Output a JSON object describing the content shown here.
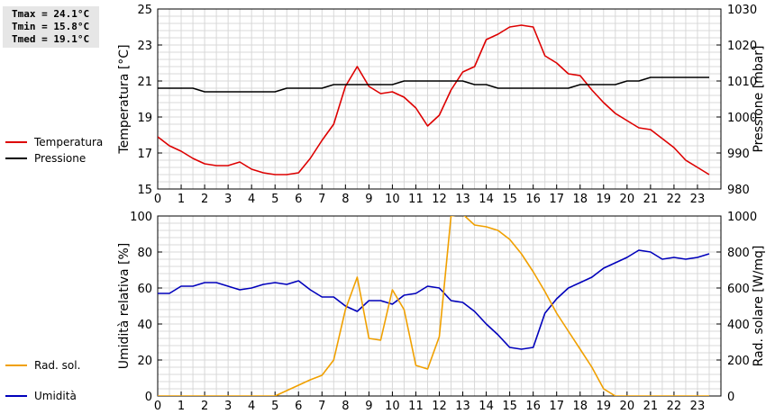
{
  "stats": {
    "tmax": "Tmax = 24.1°C",
    "tmin": "Tmin = 15.8°C",
    "tmed": "Tmed = 19.1°C"
  },
  "chart_data": [
    {
      "type": "line",
      "title": "",
      "xlabel": "",
      "ylabel": "Temperatura [°C]",
      "ylabel_right": "Pressione [mbar]",
      "xlim": [
        0,
        24
      ],
      "xticks": [
        0,
        1,
        2,
        3,
        4,
        5,
        6,
        7,
        8,
        9,
        10,
        11,
        12,
        13,
        14,
        15,
        16,
        17,
        18,
        19,
        20,
        21,
        22,
        23
      ],
      "ylim": [
        15,
        25
      ],
      "yticks": [
        15,
        17,
        19,
        21,
        23,
        25
      ],
      "ylim_right": [
        980,
        1030
      ],
      "yticks_right": [
        980,
        990,
        1000,
        1010,
        1020,
        1030
      ],
      "grid": true,
      "legend": "left",
      "series": [
        {
          "name": "Temperatura",
          "axis": "left",
          "color": "#dd0000",
          "x": [
            0,
            0.5,
            1,
            1.5,
            2,
            2.5,
            3,
            3.5,
            4,
            4.5,
            5,
            5.5,
            6,
            6.5,
            7,
            7.5,
            8,
            8.5,
            9,
            9.5,
            10,
            10.5,
            11,
            11.5,
            12,
            12.5,
            13,
            13.5,
            14,
            14.5,
            15,
            15.5,
            16,
            16.5,
            17,
            17.5,
            18,
            18.5,
            19,
            19.5,
            20,
            20.5,
            21,
            21.5,
            22,
            22.5,
            23,
            23.5
          ],
          "values": [
            17.9,
            17.4,
            17.1,
            16.7,
            16.4,
            16.3,
            16.3,
            16.5,
            16.1,
            15.9,
            15.8,
            15.8,
            15.9,
            16.7,
            17.7,
            18.6,
            20.7,
            21.8,
            20.7,
            20.3,
            20.4,
            20.1,
            19.5,
            18.5,
            19.1,
            20.5,
            21.5,
            21.8,
            23.3,
            23.6,
            24.0,
            24.1,
            24.0,
            22.4,
            22.0,
            21.4,
            21.3,
            20.5,
            19.8,
            19.2,
            18.8,
            18.4,
            18.3,
            17.8,
            17.3,
            16.6,
            16.2,
            15.8
          ]
        },
        {
          "name": "Pressione",
          "axis": "right",
          "color": "#000000",
          "x": [
            0,
            0.5,
            1,
            1.5,
            2,
            2.5,
            3,
            3.5,
            4,
            4.5,
            5,
            5.5,
            6,
            6.5,
            7,
            7.5,
            8,
            8.5,
            9,
            9.5,
            10,
            10.5,
            11,
            11.5,
            12,
            12.5,
            13,
            13.5,
            14,
            14.5,
            15,
            15.5,
            16,
            16.5,
            17,
            17.5,
            18,
            18.5,
            19,
            19.5,
            20,
            20.5,
            21,
            21.5,
            22,
            22.5,
            23,
            23.5
          ],
          "values": [
            1008,
            1008,
            1008,
            1008,
            1007,
            1007,
            1007,
            1007,
            1007,
            1007,
            1007,
            1008,
            1008,
            1008,
            1008,
            1009,
            1009,
            1009,
            1009,
            1009,
            1009,
            1010,
            1010,
            1010,
            1010,
            1010,
            1010,
            1009,
            1009,
            1008,
            1008,
            1008,
            1008,
            1008,
            1008,
            1008,
            1009,
            1009,
            1009,
            1009,
            1010,
            1010,
            1011,
            1011,
            1011,
            1011,
            1011,
            1011
          ]
        }
      ]
    },
    {
      "type": "line",
      "title": "",
      "xlabel": "",
      "ylabel": "Umidità relativa [%]",
      "ylabel_right": "Rad. solare [W/mq]",
      "xlim": [
        0,
        24
      ],
      "xticks": [
        0,
        1,
        2,
        3,
        4,
        5,
        6,
        7,
        8,
        9,
        10,
        11,
        12,
        13,
        14,
        15,
        16,
        17,
        18,
        19,
        20,
        21,
        22,
        23
      ],
      "ylim": [
        0,
        100
      ],
      "yticks": [
        0,
        20,
        40,
        60,
        80,
        100
      ],
      "ylim_right": [
        0,
        1000
      ],
      "yticks_right": [
        0,
        200,
        400,
        600,
        800,
        1000
      ],
      "grid": true,
      "legend": "left",
      "series": [
        {
          "name": "Umidità",
          "axis": "left",
          "color": "#0000bb",
          "x": [
            0,
            0.5,
            1,
            1.5,
            2,
            2.5,
            3,
            3.5,
            4,
            4.5,
            5,
            5.5,
            6,
            6.5,
            7,
            7.5,
            8,
            8.5,
            9,
            9.5,
            10,
            10.5,
            11,
            11.5,
            12,
            12.5,
            13,
            13.5,
            14,
            14.5,
            15,
            15.5,
            16,
            16.5,
            17,
            17.5,
            18,
            18.5,
            19,
            19.5,
            20,
            20.5,
            21,
            21.5,
            22,
            22.5,
            23,
            23.5
          ],
          "values": [
            57,
            57,
            61,
            61,
            63,
            63,
            61,
            59,
            60,
            62,
            63,
            62,
            64,
            59,
            55,
            55,
            50,
            47,
            53,
            53,
            51,
            56,
            57,
            61,
            60,
            53,
            52,
            47,
            40,
            34,
            27,
            26,
            27,
            46,
            54,
            60,
            63,
            66,
            71,
            74,
            77,
            81,
            80,
            76,
            77,
            76,
            77,
            79
          ]
        },
        {
          "name": "Rad. sol.",
          "axis": "right",
          "color": "#f0a000",
          "x": [
            0,
            0.5,
            1,
            1.5,
            2,
            2.5,
            3,
            3.5,
            4,
            4.5,
            5,
            5.5,
            6,
            6.5,
            7,
            7.5,
            8,
            8.5,
            9,
            9.5,
            10,
            10.5,
            11,
            11.5,
            12,
            12.5,
            13,
            13.5,
            14,
            14.5,
            15,
            15.5,
            16,
            16.5,
            17,
            17.5,
            18,
            18.5,
            19,
            19.5,
            20,
            20.5,
            21,
            21.5,
            22,
            22.5,
            23,
            23.5
          ],
          "values": [
            0,
            0,
            0,
            0,
            0,
            0,
            0,
            0,
            0,
            0,
            0,
            30,
            60,
            90,
            115,
            200,
            480,
            660,
            320,
            310,
            590,
            480,
            170,
            150,
            330,
            1000,
            1010,
            950,
            940,
            920,
            870,
            790,
            690,
            580,
            460,
            360,
            260,
            160,
            40,
            0,
            0,
            0,
            0,
            0,
            0,
            0,
            0,
            0
          ]
        }
      ]
    }
  ]
}
